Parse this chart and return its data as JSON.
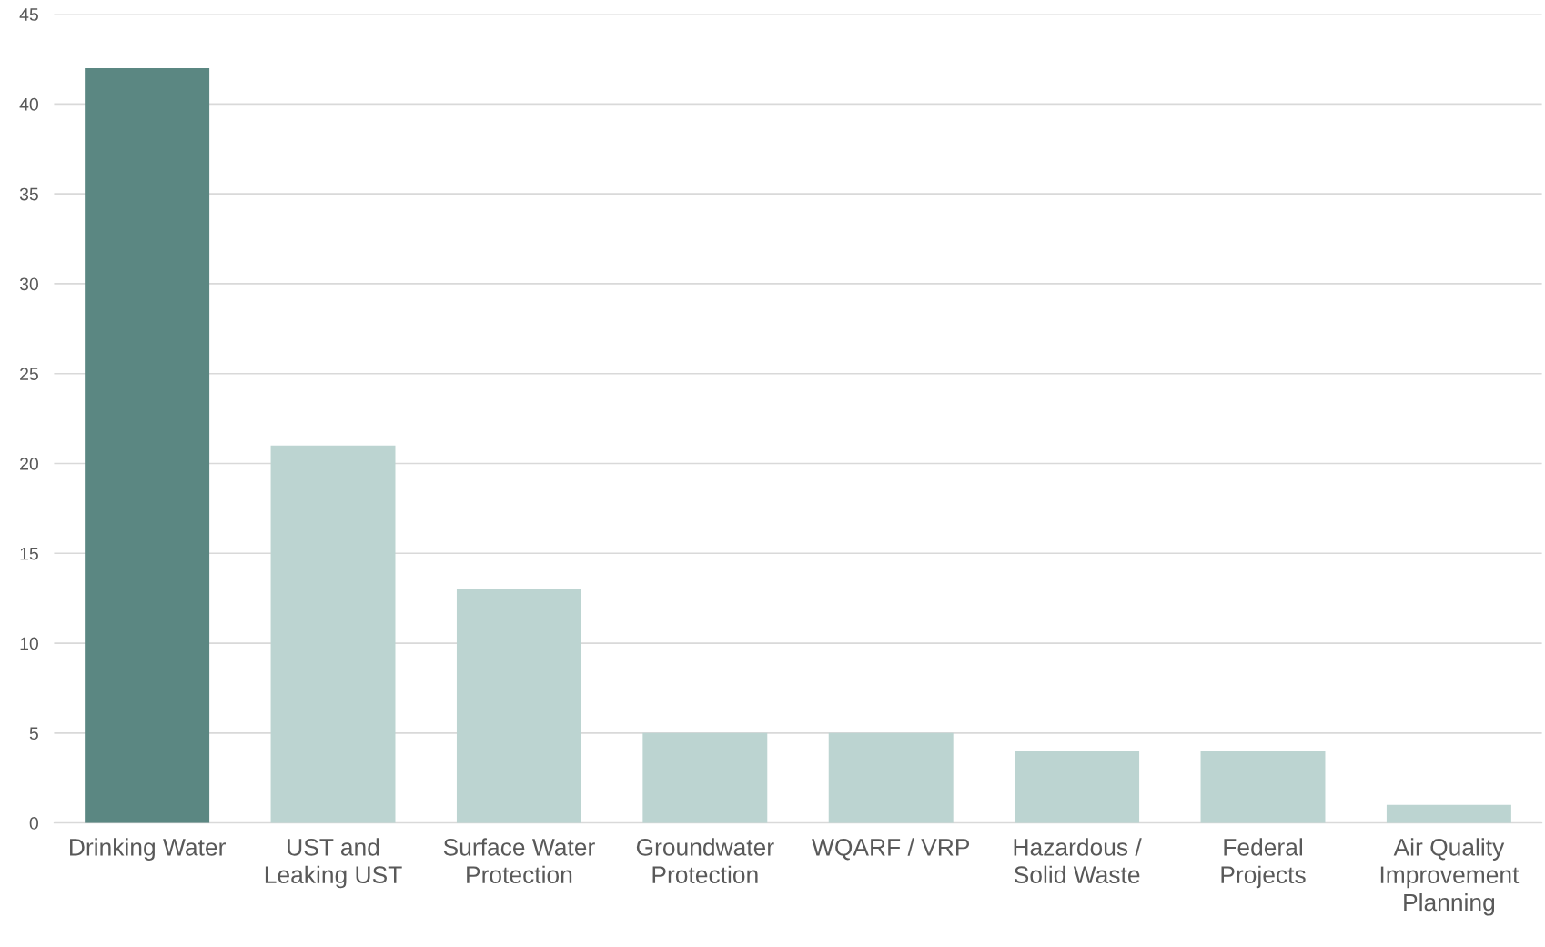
{
  "chart_data": {
    "type": "bar",
    "categories": [
      "Drinking Water",
      "UST and\nLeaking UST",
      "Surface Water\nProtection",
      "Groundwater\nProtection",
      "WQARF / VRP",
      "Hazardous /\nSolid Waste",
      "Federal\nProjects",
      "Air Quality\nImprovement\nPlanning"
    ],
    "values": [
      42,
      21,
      13,
      5,
      5,
      4,
      4,
      1
    ],
    "colors": [
      "#5b8782",
      "#bcd4d1",
      "#bcd4d1",
      "#bcd4d1",
      "#bcd4d1",
      "#bcd4d1",
      "#bcd4d1",
      "#bcd4d1"
    ],
    "ylim": [
      0,
      45
    ],
    "yticks": [
      0,
      5,
      10,
      15,
      20,
      25,
      30,
      35,
      40,
      45
    ],
    "grid": "y",
    "legend": false
  }
}
